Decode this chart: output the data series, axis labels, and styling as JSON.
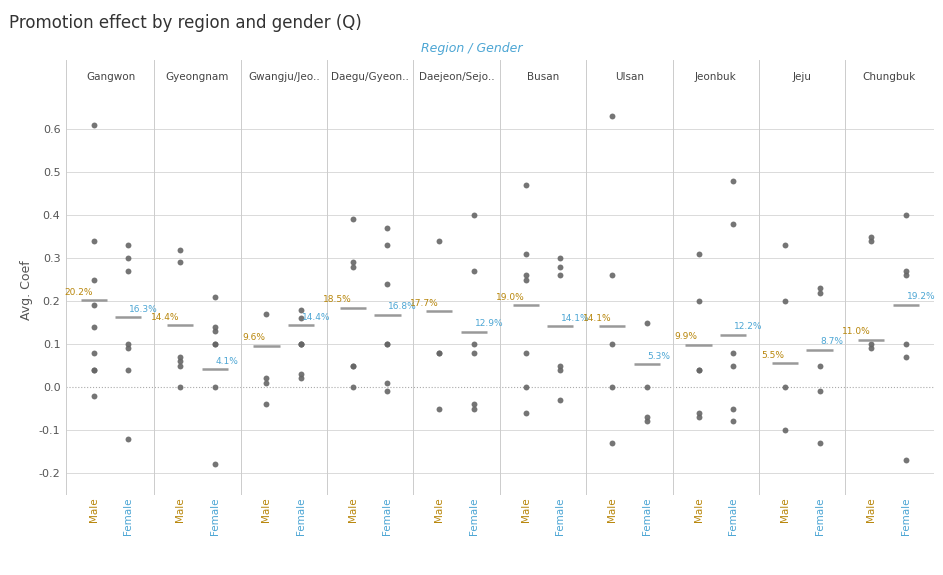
{
  "title": "Promotion effect by region and gender (Q)",
  "xlabel": "Region / Gender",
  "ylabel": "Avg. Coef",
  "ylim": [
    -0.25,
    0.7
  ],
  "yticks": [
    -0.2,
    -0.1,
    0.0,
    0.1,
    0.2,
    0.3,
    0.4,
    0.5,
    0.6
  ],
  "background_color": "#ffffff",
  "regions": [
    "Gangwon",
    "Gyeongnam",
    "Gwangju/Jeo..",
    "Daegu/Gyeon..",
    "Daejeon/Sejo..",
    "Busan",
    "Ulsan",
    "Jeonbuk",
    "Jeju",
    "Chungbuk"
  ],
  "male_label_color": "#b8860b",
  "female_label_color": "#4da6d4",
  "male_tick_color": "#b8860b",
  "female_tick_color": "#4da6d4",
  "avg_line_color": "#999999",
  "grid_color": "#cccccc",
  "dot_color": "#666666",
  "header_color": "#444444",
  "xlabel_color": "#4da6d4",
  "title_color": "#333333",
  "ylabel_color": "#555555",
  "male_avgs": [
    0.202,
    0.144,
    0.096,
    0.185,
    0.177,
    0.19,
    0.141,
    0.099,
    0.055,
    0.11
  ],
  "female_avgs": [
    0.163,
    0.041,
    0.144,
    0.168,
    0.129,
    0.141,
    0.053,
    0.122,
    0.087,
    0.192
  ],
  "male_avg_labels": [
    "20.2%",
    "14.4%",
    "9.6%",
    "18.5%",
    "17.7%",
    "19.0%",
    "14.1%",
    "9.9%",
    "5.5%",
    "11.0%"
  ],
  "female_avg_labels": [
    "16.3%",
    "4.1%",
    "14.4%",
    "16.8%",
    "12.9%",
    "14.1%",
    "5.3%",
    "12.2%",
    "8.7%",
    "19.2%"
  ],
  "male_dots": [
    [
      0.61,
      0.34,
      0.25,
      0.19,
      0.14,
      0.08,
      0.04,
      0.04,
      -0.02
    ],
    [
      0.32,
      0.29,
      0.07,
      0.06,
      0.05,
      0.0
    ],
    [
      0.17,
      0.02,
      0.01,
      -0.04
    ],
    [
      0.39,
      0.29,
      0.28,
      0.05,
      0.05,
      0.0
    ],
    [
      0.34,
      0.08,
      0.08,
      -0.05
    ],
    [
      0.47,
      0.31,
      0.26,
      0.25,
      0.08,
      0.0,
      -0.06
    ],
    [
      0.63,
      0.26,
      0.1,
      0.0,
      -0.13
    ],
    [
      0.31,
      0.2,
      0.04,
      0.04,
      -0.06,
      -0.07
    ],
    [
      0.33,
      0.2,
      0.0,
      -0.1
    ],
    [
      0.35,
      0.34,
      0.1,
      0.09
    ]
  ],
  "female_dots": [
    [
      0.33,
      0.3,
      0.27,
      0.1,
      0.09,
      0.04,
      -0.12
    ],
    [
      0.21,
      0.14,
      0.13,
      0.1,
      0.1,
      0.0,
      -0.18
    ],
    [
      0.18,
      0.16,
      0.1,
      0.1,
      0.1,
      0.03,
      0.02
    ],
    [
      0.37,
      0.33,
      0.24,
      0.1,
      0.1,
      0.01,
      -0.01
    ],
    [
      0.4,
      0.27,
      0.1,
      0.08,
      -0.04,
      -0.05
    ],
    [
      0.3,
      0.28,
      0.26,
      0.05,
      0.04,
      -0.03
    ],
    [
      0.15,
      0.0,
      -0.07,
      -0.08
    ],
    [
      0.48,
      0.38,
      0.08,
      0.05,
      -0.05,
      -0.08
    ],
    [
      0.23,
      0.22,
      0.05,
      -0.01,
      -0.13
    ],
    [
      0.4,
      0.27,
      0.26,
      0.1,
      0.07,
      -0.17
    ]
  ]
}
